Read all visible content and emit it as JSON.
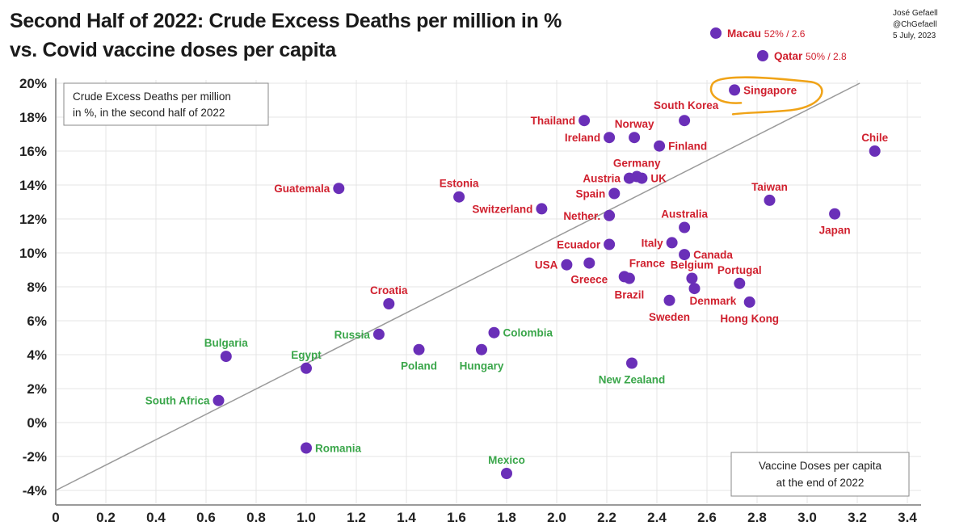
{
  "header": {
    "title_line1": "Second Half of 2022: Crude Excess Deaths per million in %",
    "title_line2": "vs. Covid vaccine doses per capita",
    "credit": [
      "José Gefaell",
      "@ChGefaell",
      "5 July, 2023"
    ]
  },
  "colors": {
    "point": "#6a2fb8",
    "label_high": "#d0202e",
    "label_low": "#3aa64a",
    "grid": "#e4e4e4",
    "trend": "#9a9a9a",
    "highlight": "#f0a317"
  },
  "chart_data": {
    "type": "scatter",
    "title": "Second Half of 2022: Crude Excess Deaths per million in % vs. Covid vaccine doses per capita",
    "xlabel": "Vaccine Doses per capita at the end of 2022",
    "ylabel": "Crude Excess Deaths per million in %, in the second half of 2022",
    "xlabel_lines": [
      "Vaccine Doses per capita",
      "at the end of 2022"
    ],
    "ylabel_lines": [
      "Crude Excess Deaths per million",
      "in %, in the second half of 2022"
    ],
    "xlim": [
      0,
      3.4
    ],
    "ylim": [
      -4,
      20
    ],
    "grid": true,
    "x_ticks": [
      "0",
      "0.2",
      "0.4",
      "0.6",
      "0.8",
      "1.0",
      "1.2",
      "1.4",
      "1.6",
      "1.8",
      "2.0",
      "2.2",
      "2.4",
      "2.6",
      "2.8",
      "3.0",
      "3.2",
      "3.4"
    ],
    "y_ticks": [
      "20%",
      "18%",
      "16%",
      "14%",
      "12%",
      "10%",
      "8%",
      "6%",
      "4%",
      "2%",
      "0%",
      "-2%",
      "-4%"
    ],
    "trend_line": {
      "x": [
        0,
        3.21
      ],
      "y": [
        -4.0,
        20.0
      ]
    },
    "off_scale": [
      {
        "name": "Macau",
        "x": 2.6,
        "y": 52,
        "annotation": "52% / 2.6",
        "group": "high"
      },
      {
        "name": "Qatar",
        "x": 2.8,
        "y": 50,
        "annotation": "50% / 2.8",
        "group": "high"
      }
    ],
    "highlight": "Singapore",
    "points": [
      {
        "name": "Singapore",
        "x": 2.71,
        "y": 19.6,
        "group": "high",
        "pos": "right"
      },
      {
        "name": "South Korea",
        "x": 2.51,
        "y": 17.8,
        "group": "high",
        "pos": "above-left"
      },
      {
        "name": "Thailand",
        "x": 2.11,
        "y": 17.8,
        "group": "high",
        "pos": "left"
      },
      {
        "name": "Norway",
        "x": 2.31,
        "y": 16.8,
        "group": "high",
        "pos": "above"
      },
      {
        "name": "Ireland",
        "x": 2.21,
        "y": 16.8,
        "group": "high",
        "pos": "left"
      },
      {
        "name": "Finland",
        "x": 2.41,
        "y": 16.3,
        "group": "high",
        "pos": "right"
      },
      {
        "name": "Chile",
        "x": 3.27,
        "y": 16.0,
        "group": "high",
        "pos": "above"
      },
      {
        "name": "Germany",
        "x": 2.32,
        "y": 14.5,
        "group": "high",
        "pos": "above"
      },
      {
        "name": "Austria",
        "x": 2.29,
        "y": 14.4,
        "group": "high",
        "pos": "left"
      },
      {
        "name": "UK",
        "x": 2.34,
        "y": 14.4,
        "group": "high",
        "pos": "right"
      },
      {
        "name": "Guatemala",
        "x": 1.13,
        "y": 13.8,
        "group": "high",
        "pos": "left"
      },
      {
        "name": "Estonia",
        "x": 1.61,
        "y": 13.3,
        "group": "high",
        "pos": "above"
      },
      {
        "name": "Spain",
        "x": 2.23,
        "y": 13.5,
        "group": "high",
        "pos": "left"
      },
      {
        "name": "Taiwan",
        "x": 2.85,
        "y": 13.1,
        "group": "high",
        "pos": "above"
      },
      {
        "name": "Switzerland",
        "x": 1.94,
        "y": 12.6,
        "group": "high",
        "pos": "left"
      },
      {
        "name": "Nether.",
        "x": 2.21,
        "y": 12.2,
        "group": "high",
        "pos": "left"
      },
      {
        "name": "Japan",
        "x": 3.11,
        "y": 12.3,
        "group": "high",
        "pos": "below"
      },
      {
        "name": "Australia",
        "x": 2.51,
        "y": 11.5,
        "group": "high",
        "pos": "above"
      },
      {
        "name": "Ecuador",
        "x": 2.21,
        "y": 10.5,
        "group": "high",
        "pos": "left"
      },
      {
        "name": "Italy",
        "x": 2.46,
        "y": 10.6,
        "group": "high",
        "pos": "left"
      },
      {
        "name": "Canada",
        "x": 2.51,
        "y": 9.9,
        "group": "high",
        "pos": "right"
      },
      {
        "name": "USA",
        "x": 2.04,
        "y": 9.3,
        "group": "high",
        "pos": "left"
      },
      {
        "name": "Greece",
        "x": 2.13,
        "y": 9.4,
        "group": "high",
        "pos": "below"
      },
      {
        "name": "France",
        "x": 2.27,
        "y": 8.6,
        "group": "high",
        "pos": "above-right"
      },
      {
        "name": "Brazil",
        "x": 2.29,
        "y": 8.5,
        "group": "high",
        "pos": "below"
      },
      {
        "name": "Belgium",
        "x": 2.54,
        "y": 8.5,
        "group": "high",
        "pos": "above"
      },
      {
        "name": "Denmark",
        "x": 2.55,
        "y": 7.9,
        "group": "high",
        "pos": "below-right"
      },
      {
        "name": "Portugal",
        "x": 2.73,
        "y": 8.2,
        "group": "high",
        "pos": "above"
      },
      {
        "name": "Sweden",
        "x": 2.45,
        "y": 7.2,
        "group": "high",
        "pos": "below"
      },
      {
        "name": "Hong Kong",
        "x": 2.77,
        "y": 7.1,
        "group": "high",
        "pos": "below"
      },
      {
        "name": "Croatia",
        "x": 1.33,
        "y": 7.0,
        "group": "high",
        "pos": "above"
      },
      {
        "name": "Russia",
        "x": 1.29,
        "y": 5.2,
        "group": "low",
        "pos": "left"
      },
      {
        "name": "Colombia",
        "x": 1.75,
        "y": 5.3,
        "group": "low",
        "pos": "right"
      },
      {
        "name": "Poland",
        "x": 1.45,
        "y": 4.3,
        "group": "low",
        "pos": "below"
      },
      {
        "name": "Hungary",
        "x": 1.7,
        "y": 4.3,
        "group": "low",
        "pos": "below"
      },
      {
        "name": "Bulgaria",
        "x": 0.68,
        "y": 3.9,
        "group": "low",
        "pos": "above"
      },
      {
        "name": "New Zealand",
        "x": 2.3,
        "y": 3.5,
        "group": "low",
        "pos": "below"
      },
      {
        "name": "Egypt",
        "x": 1.0,
        "y": 3.2,
        "group": "low",
        "pos": "above"
      },
      {
        "name": "South Africa",
        "x": 0.65,
        "y": 1.3,
        "group": "low",
        "pos": "left"
      },
      {
        "name": "Romania",
        "x": 1.0,
        "y": -1.5,
        "group": "low",
        "pos": "right"
      },
      {
        "name": "Mexico",
        "x": 1.8,
        "y": -3.0,
        "group": "low",
        "pos": "above"
      }
    ]
  }
}
